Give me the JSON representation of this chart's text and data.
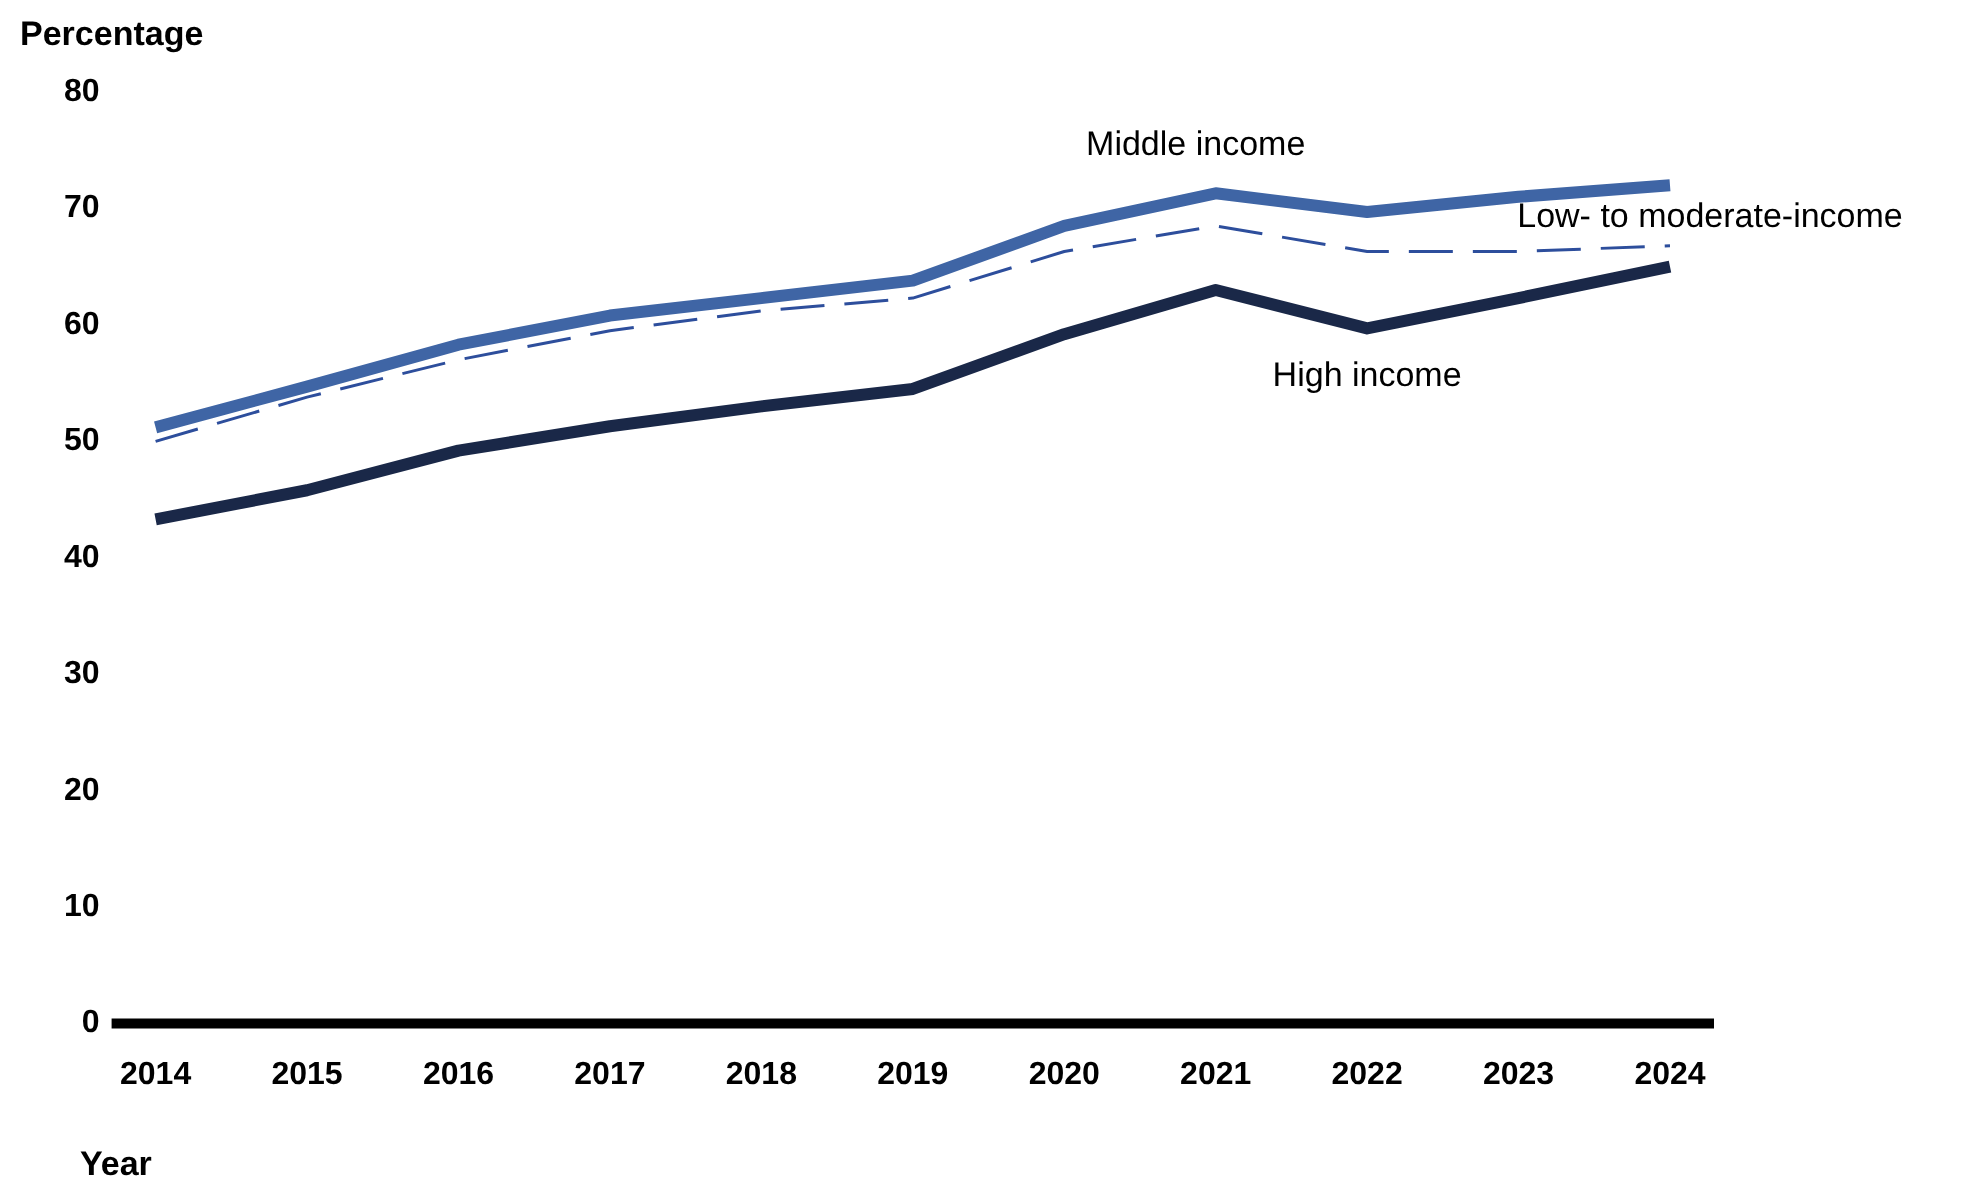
{
  "chart_data": {
    "type": "line",
    "xlabel": "Year",
    "ylabel": "Percentage",
    "categories": [
      "2014",
      "2015",
      "2016",
      "2017",
      "2018",
      "2019",
      "2020",
      "2021",
      "2022",
      "2023",
      "2024"
    ],
    "ylim": [
      0,
      80
    ],
    "yticks": [
      0,
      10,
      20,
      30,
      40,
      50,
      60,
      70,
      80
    ],
    "grid": false,
    "legend": false,
    "marker": "none",
    "series": [
      {
        "name": "Middle income",
        "color": "#3f65a5",
        "line_style": "solid",
        "values": [
          51.2,
          54.7,
          58.3,
          60.8,
          62.3,
          63.8,
          68.5,
          71.3,
          69.7,
          71,
          72
        ]
      },
      {
        "name": "Low- to moderate-income",
        "color": "#2d4e9c",
        "line_style": "dashed",
        "values": [
          50,
          53.8,
          57,
          59.5,
          61.2,
          62.3,
          66.3,
          68.5,
          66.3,
          66.3,
          66.8
        ]
      },
      {
        "name": "High income",
        "color": "#1a2848",
        "line_style": "solid",
        "values": [
          43.3,
          45.8,
          49.2,
          51.3,
          53,
          54.5,
          59.2,
          63,
          59.7,
          62.3,
          65
        ]
      }
    ]
  }
}
